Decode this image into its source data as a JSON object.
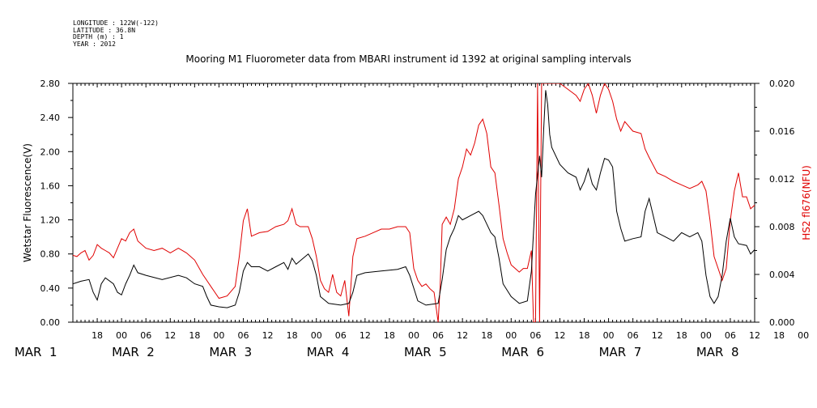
{
  "metadata": {
    "longitude": "LONGITUDE : 122W(-122)",
    "latitude": "LATITUDE : 36.8N",
    "depth": "DEPTH (m) : 1",
    "year": "YEAR : 2012"
  },
  "chart_data": {
    "type": "line",
    "title": "Mooring M1 Fluorometer data from MBARI instrument id 1392 at original sampling intervals",
    "ylabel_left": "Wetstar Fluorescence(V)",
    "ylabel_right": "HS2 fl676(NFU)",
    "ylim_left": [
      0,
      2.8
    ],
    "ylim_right": [
      0,
      0.02
    ],
    "yticks_left": [
      "0.00",
      "0.40",
      "0.80",
      "1.20",
      "1.60",
      "2.00",
      "2.40",
      "2.80"
    ],
    "yticks_right": [
      "0.000",
      "0.004",
      "0.008",
      "0.012",
      "0.016",
      "0.020"
    ],
    "x_hour_ticks": [
      "18",
      "00",
      "06",
      "12",
      "18",
      "00",
      "06",
      "12",
      "18",
      "00",
      "06",
      "12",
      "18",
      "00",
      "06",
      "12",
      "18",
      "00",
      "06",
      "12",
      "18",
      "00",
      "06",
      "12",
      "18",
      "00",
      "06",
      "12",
      "18",
      "00",
      "06",
      "12"
    ],
    "x_day_labels": [
      "MAR  1",
      "MAR  2",
      "MAR  3",
      "MAR  4",
      "MAR  5",
      "MAR  6",
      "MAR  7",
      "MAR  8"
    ],
    "x_range_hours": [
      12,
      180
    ],
    "series": [
      {
        "name": "Wetstar Fluorescence(V)",
        "axis": "left",
        "color": "#000000",
        "points": [
          [
            12,
            0.45
          ],
          [
            14,
            0.48
          ],
          [
            16,
            0.5
          ],
          [
            17,
            0.35
          ],
          [
            18,
            0.26
          ],
          [
            19,
            0.45
          ],
          [
            20,
            0.52
          ],
          [
            22,
            0.45
          ],
          [
            23,
            0.35
          ],
          [
            24,
            0.32
          ],
          [
            25,
            0.45
          ],
          [
            26,
            0.55
          ],
          [
            27,
            0.67
          ],
          [
            28,
            0.58
          ],
          [
            30,
            0.55
          ],
          [
            34,
            0.5
          ],
          [
            38,
            0.55
          ],
          [
            40,
            0.52
          ],
          [
            42,
            0.45
          ],
          [
            44,
            0.42
          ],
          [
            45,
            0.3
          ],
          [
            46,
            0.2
          ],
          [
            48,
            0.18
          ],
          [
            50,
            0.17
          ],
          [
            52,
            0.2
          ],
          [
            53,
            0.35
          ],
          [
            54,
            0.6
          ],
          [
            55,
            0.7
          ],
          [
            56,
            0.65
          ],
          [
            58,
            0.65
          ],
          [
            60,
            0.6
          ],
          [
            62,
            0.65
          ],
          [
            64,
            0.7
          ],
          [
            65,
            0.62
          ],
          [
            66,
            0.75
          ],
          [
            67,
            0.68
          ],
          [
            68,
            0.72
          ],
          [
            70,
            0.8
          ],
          [
            71,
            0.72
          ],
          [
            72,
            0.55
          ],
          [
            73,
            0.3
          ],
          [
            75,
            0.22
          ],
          [
            78,
            0.2
          ],
          [
            80,
            0.22
          ],
          [
            81,
            0.35
          ],
          [
            82,
            0.55
          ],
          [
            84,
            0.58
          ],
          [
            88,
            0.6
          ],
          [
            92,
            0.62
          ],
          [
            94,
            0.65
          ],
          [
            95,
            0.55
          ],
          [
            96,
            0.4
          ],
          [
            97,
            0.25
          ],
          [
            99,
            0.2
          ],
          [
            102,
            0.22
          ],
          [
            103,
            0.5
          ],
          [
            104,
            0.85
          ],
          [
            105,
            1.0
          ],
          [
            106,
            1.1
          ],
          [
            107,
            1.25
          ],
          [
            108,
            1.2
          ],
          [
            110,
            1.25
          ],
          [
            112,
            1.3
          ],
          [
            113,
            1.25
          ],
          [
            114,
            1.15
          ],
          [
            115,
            1.05
          ],
          [
            116,
            1.0
          ],
          [
            117,
            0.75
          ],
          [
            118,
            0.45
          ],
          [
            120,
            0.3
          ],
          [
            122,
            0.22
          ],
          [
            124,
            0.25
          ],
          [
            125,
            0.6
          ],
          [
            126,
            1.5
          ],
          [
            127,
            1.95
          ],
          [
            127.5,
            1.7
          ],
          [
            128,
            2.25
          ],
          [
            128.5,
            2.72
          ],
          [
            129,
            2.55
          ],
          [
            129.5,
            2.2
          ],
          [
            130,
            2.05
          ],
          [
            132,
            1.85
          ],
          [
            134,
            1.75
          ],
          [
            136,
            1.7
          ],
          [
            137,
            1.55
          ],
          [
            138,
            1.65
          ],
          [
            139,
            1.8
          ],
          [
            140,
            1.62
          ],
          [
            141,
            1.55
          ],
          [
            142,
            1.75
          ],
          [
            143,
            1.92
          ],
          [
            144,
            1.9
          ],
          [
            145,
            1.82
          ],
          [
            146,
            1.3
          ],
          [
            147,
            1.1
          ],
          [
            148,
            0.95
          ],
          [
            150,
            0.98
          ],
          [
            152,
            1.0
          ],
          [
            153,
            1.3
          ],
          [
            154,
            1.45
          ],
          [
            155,
            1.25
          ],
          [
            156,
            1.05
          ],
          [
            158,
            1.0
          ],
          [
            160,
            0.95
          ],
          [
            162,
            1.05
          ],
          [
            164,
            1.0
          ],
          [
            166,
            1.05
          ],
          [
            167,
            0.95
          ],
          [
            168,
            0.55
          ],
          [
            169,
            0.3
          ],
          [
            170,
            0.22
          ],
          [
            171,
            0.3
          ],
          [
            172,
            0.55
          ],
          [
            173,
            0.95
          ],
          [
            174,
            1.22
          ],
          [
            175,
            1.0
          ],
          [
            176,
            0.92
          ],
          [
            178,
            0.9
          ],
          [
            179,
            0.8
          ],
          [
            180,
            0.85
          ],
          [
            181,
            1.0
          ],
          [
            182,
            0.95
          ],
          [
            183,
            1.02
          ],
          [
            184,
            1.05
          ],
          [
            185,
            1.0
          ],
          [
            186,
            1.12
          ],
          [
            187,
            1.02
          ]
        ]
      },
      {
        "name": "HS2 fl676(NFU)",
        "axis": "right",
        "color": "#e00000",
        "points": [
          [
            12,
            0.0056
          ],
          [
            13,
            0.0055
          ],
          [
            14,
            0.0058
          ],
          [
            15,
            0.006
          ],
          [
            16,
            0.0052
          ],
          [
            17,
            0.0056
          ],
          [
            18,
            0.0065
          ],
          [
            19,
            0.0062
          ],
          [
            20,
            0.006
          ],
          [
            21,
            0.0058
          ],
          [
            22,
            0.0054
          ],
          [
            23,
            0.0062
          ],
          [
            24,
            0.007
          ],
          [
            25,
            0.0068
          ],
          [
            26,
            0.0075
          ],
          [
            27,
            0.0078
          ],
          [
            28,
            0.0068
          ],
          [
            30,
            0.0062
          ],
          [
            32,
            0.006
          ],
          [
            34,
            0.0062
          ],
          [
            36,
            0.0058
          ],
          [
            38,
            0.0062
          ],
          [
            40,
            0.0058
          ],
          [
            42,
            0.0052
          ],
          [
            44,
            0.004
          ],
          [
            45,
            0.0035
          ],
          [
            46,
            0.003
          ],
          [
            47,
            0.0025
          ],
          [
            48,
            0.002
          ],
          [
            50,
            0.0022
          ],
          [
            52,
            0.003
          ],
          [
            53,
            0.0055
          ],
          [
            54,
            0.0085
          ],
          [
            55,
            0.0095
          ],
          [
            56,
            0.0072
          ],
          [
            58,
            0.0075
          ],
          [
            60,
            0.0076
          ],
          [
            62,
            0.008
          ],
          [
            64,
            0.0082
          ],
          [
            65,
            0.0085
          ],
          [
            66,
            0.0095
          ],
          [
            67,
            0.0082
          ],
          [
            68,
            0.008
          ],
          [
            70,
            0.008
          ],
          [
            71,
            0.007
          ],
          [
            72,
            0.0055
          ],
          [
            73,
            0.0035
          ],
          [
            74,
            0.0028
          ],
          [
            75,
            0.0025
          ],
          [
            76,
            0.004
          ],
          [
            77,
            0.0025
          ],
          [
            78,
            0.0022
          ],
          [
            79,
            0.0035
          ],
          [
            80,
            0.0005
          ],
          [
            81,
            0.0055
          ],
          [
            82,
            0.007
          ],
          [
            84,
            0.0072
          ],
          [
            86,
            0.0075
          ],
          [
            88,
            0.0078
          ],
          [
            90,
            0.0078
          ],
          [
            92,
            0.008
          ],
          [
            94,
            0.008
          ],
          [
            95,
            0.0075
          ],
          [
            96,
            0.0045
          ],
          [
            97,
            0.0035
          ],
          [
            98,
            0.003
          ],
          [
            99,
            0.0032
          ],
          [
            100,
            0.0028
          ],
          [
            101,
            0.0025
          ],
          [
            102,
            0.0
          ],
          [
            102.5,
            0.003
          ],
          [
            103,
            0.0082
          ],
          [
            104,
            0.0088
          ],
          [
            105,
            0.0082
          ],
          [
            106,
            0.0095
          ],
          [
            107,
            0.012
          ],
          [
            108,
            0.013
          ],
          [
            109,
            0.0145
          ],
          [
            110,
            0.014
          ],
          [
            111,
            0.015
          ],
          [
            112,
            0.0165
          ],
          [
            113,
            0.017
          ],
          [
            114,
            0.0158
          ],
          [
            115,
            0.013
          ],
          [
            116,
            0.0125
          ],
          [
            117,
            0.0098
          ],
          [
            118,
            0.007
          ],
          [
            119,
            0.0058
          ],
          [
            120,
            0.0048
          ],
          [
            121,
            0.0045
          ],
          [
            122,
            0.0042
          ],
          [
            123,
            0.0045
          ],
          [
            124,
            0.0045
          ],
          [
            125,
            0.006
          ],
          [
            125.5,
            0.0
          ],
          [
            126,
            0.0
          ],
          [
            126.5,
            0.02
          ],
          [
            127,
            0.0
          ],
          [
            127.5,
            0.02
          ],
          [
            128,
            0.02
          ],
          [
            130,
            0.02
          ],
          [
            132,
            0.02
          ],
          [
            134,
            0.0195
          ],
          [
            136,
            0.019
          ],
          [
            137,
            0.0185
          ],
          [
            138,
            0.0195
          ],
          [
            139,
            0.02
          ],
          [
            140,
            0.019
          ],
          [
            141,
            0.0175
          ],
          [
            142,
            0.019
          ],
          [
            143,
            0.02
          ],
          [
            144,
            0.0195
          ],
          [
            145,
            0.0185
          ],
          [
            146,
            0.017
          ],
          [
            147,
            0.016
          ],
          [
            148,
            0.0168
          ],
          [
            150,
            0.016
          ],
          [
            152,
            0.0158
          ],
          [
            153,
            0.0145
          ],
          [
            154,
            0.0138
          ],
          [
            156,
            0.0125
          ],
          [
            158,
            0.0122
          ],
          [
            160,
            0.0118
          ],
          [
            162,
            0.0115
          ],
          [
            164,
            0.0112
          ],
          [
            166,
            0.0115
          ],
          [
            167,
            0.0118
          ],
          [
            168,
            0.011
          ],
          [
            169,
            0.0085
          ],
          [
            170,
            0.0055
          ],
          [
            171,
            0.0045
          ],
          [
            172,
            0.0035
          ],
          [
            173,
            0.0045
          ],
          [
            174,
            0.0085
          ],
          [
            175,
            0.011
          ],
          [
            176,
            0.0125
          ],
          [
            177,
            0.0105
          ],
          [
            178,
            0.0105
          ],
          [
            179,
            0.0095
          ],
          [
            180,
            0.0098
          ],
          [
            181,
            0.0092
          ],
          [
            182,
            0.0095
          ],
          [
            183,
            0.0098
          ],
          [
            184,
            0.0115
          ],
          [
            185,
            0.011
          ],
          [
            186,
            0.0115
          ],
          [
            187,
            0.011
          ]
        ]
      }
    ],
    "grid": false,
    "legend": "none"
  }
}
